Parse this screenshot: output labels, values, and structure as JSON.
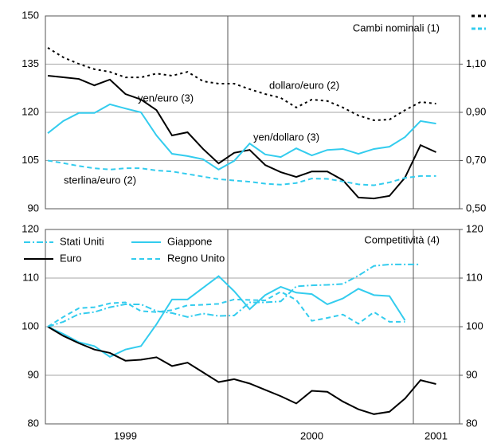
{
  "chart_data": [
    {
      "type": "line",
      "title": "Cambi nominali (1)",
      "ylim": [
        90,
        150
      ],
      "yticks": [
        90,
        105,
        120,
        135,
        150
      ],
      "y2lim": [
        0.5,
        1.3
      ],
      "y2ticks": [
        {
          "value": 0.5,
          "label": "0,50"
        },
        {
          "value": 0.7,
          "label": "0,70"
        },
        {
          "value": 0.9,
          "label": "0,90"
        },
        {
          "value": 1.1,
          "label": "1,10"
        }
      ],
      "grid": true,
      "series": [
        {
          "name": "yen/euro (3)",
          "color": "#000000",
          "dash": "solid",
          "values": [
            131.4,
            130.9,
            130.4,
            128.4,
            130.2,
            125.7,
            124,
            120.7,
            112.8,
            113.8,
            108.6,
            104.1,
            107.4,
            108.3,
            103.6,
            101.4,
            99.9,
            101.6,
            101.6,
            98.9,
            93.5,
            93.2,
            94,
            99.7,
            109.8,
            107.6
          ]
        },
        {
          "name": "yen/dollaro (3)",
          "color": "#33ccee",
          "dash": "solid",
          "values": [
            113.5,
            117.3,
            119.8,
            119.8,
            122.5,
            121.2,
            120,
            112.8,
            107.1,
            106.4,
            105.4,
            102.2,
            104.9,
            110.3,
            106.9,
            106.1,
            108.8,
            106.6,
            108.3,
            108.6,
            107.1,
            108.6,
            109.3,
            112.3,
            117.3,
            116.5
          ]
        },
        {
          "name": "sterlina/euro (2)",
          "color": "#33ccee",
          "dash": "dashed",
          "values": [
            105,
            104.2,
            103.3,
            102.6,
            102.2,
            102.6,
            102.6,
            101.9,
            101.6,
            100.8,
            100,
            99.2,
            98.8,
            98.4,
            97.8,
            97.5,
            98,
            99.4,
            99.3,
            98.5,
            97.6,
            97.3,
            98.2,
            99.6,
            100.2,
            100.2
          ]
        },
        {
          "name": "dollaro/euro (2)",
          "color": "#000000",
          "dash": "dotted",
          "axis": "y2",
          "values": [
            1.168,
            1.128,
            1.101,
            1.079,
            1.068,
            1.045,
            1.045,
            1.061,
            1.052,
            1.068,
            1.029,
            1.019,
            1.019,
            0.996,
            0.976,
            0.96,
            0.92,
            0.953,
            0.947,
            0.92,
            0.887,
            0.867,
            0.87,
            0.909,
            0.943,
            0.936
          ]
        }
      ]
    },
    {
      "type": "line",
      "title": "Competitività (4)",
      "categories": [
        null,
        null,
        null,
        null,
        null,
        "1999",
        null,
        null,
        null,
        null,
        null,
        null,
        null,
        null,
        null,
        null,
        null,
        "2000",
        null,
        null,
        null,
        null,
        null,
        null,
        null,
        "2001"
      ],
      "ylim": [
        80,
        120
      ],
      "yticks": [
        80,
        90,
        100,
        110,
        120
      ],
      "y2lim": [
        80,
        120
      ],
      "y2ticks": [
        80,
        90,
        100,
        110,
        120
      ],
      "grid": true,
      "series": [
        {
          "name": "Stati Uniti",
          "color": "#33ccee",
          "dash": "dashdot",
          "values": [
            100,
            101,
            102.6,
            103,
            104,
            104.6,
            104.6,
            103.2,
            102.8,
            102,
            102.7,
            102.2,
            102.3,
            105,
            105,
            105.2,
            108.3,
            108.5,
            108.6,
            108.8,
            110.5,
            112.5,
            112.8,
            112.8,
            112.8,
            null
          ]
        },
        {
          "name": "Giappone",
          "color": "#33ccee",
          "dash": "solid",
          "values": [
            100,
            98.5,
            96.8,
            96,
            93.8,
            95.3,
            96,
            100.5,
            105.6,
            105.6,
            108,
            110.4,
            107.3,
            103.6,
            106.5,
            108.2,
            107,
            106.7,
            104.6,
            105.8,
            107.8,
            106.5,
            106.3,
            101.3,
            null,
            null
          ]
        },
        {
          "name": "Euro",
          "color": "#000000",
          "dash": "solid",
          "values": [
            100,
            98.1,
            96.6,
            95.3,
            94.6,
            93,
            93.2,
            93.7,
            91.9,
            92.6,
            90.6,
            88.6,
            89.2,
            88.3,
            87,
            85.7,
            84.2,
            86.8,
            86.6,
            84.6,
            83,
            82,
            82.5,
            85.2,
            89,
            88.2
          ]
        },
        {
          "name": "Regno Unito",
          "color": "#33ccee",
          "dash": "dashed",
          "values": [
            100,
            102,
            103.8,
            104,
            104.8,
            105,
            103.2,
            103,
            103.4,
            104.4,
            104.5,
            104.7,
            105.6,
            105.5,
            105.4,
            107.2,
            105.5,
            101.2,
            101.8,
            102.5,
            100.6,
            103,
            101,
            101,
            null,
            null
          ]
        }
      ]
    }
  ]
}
